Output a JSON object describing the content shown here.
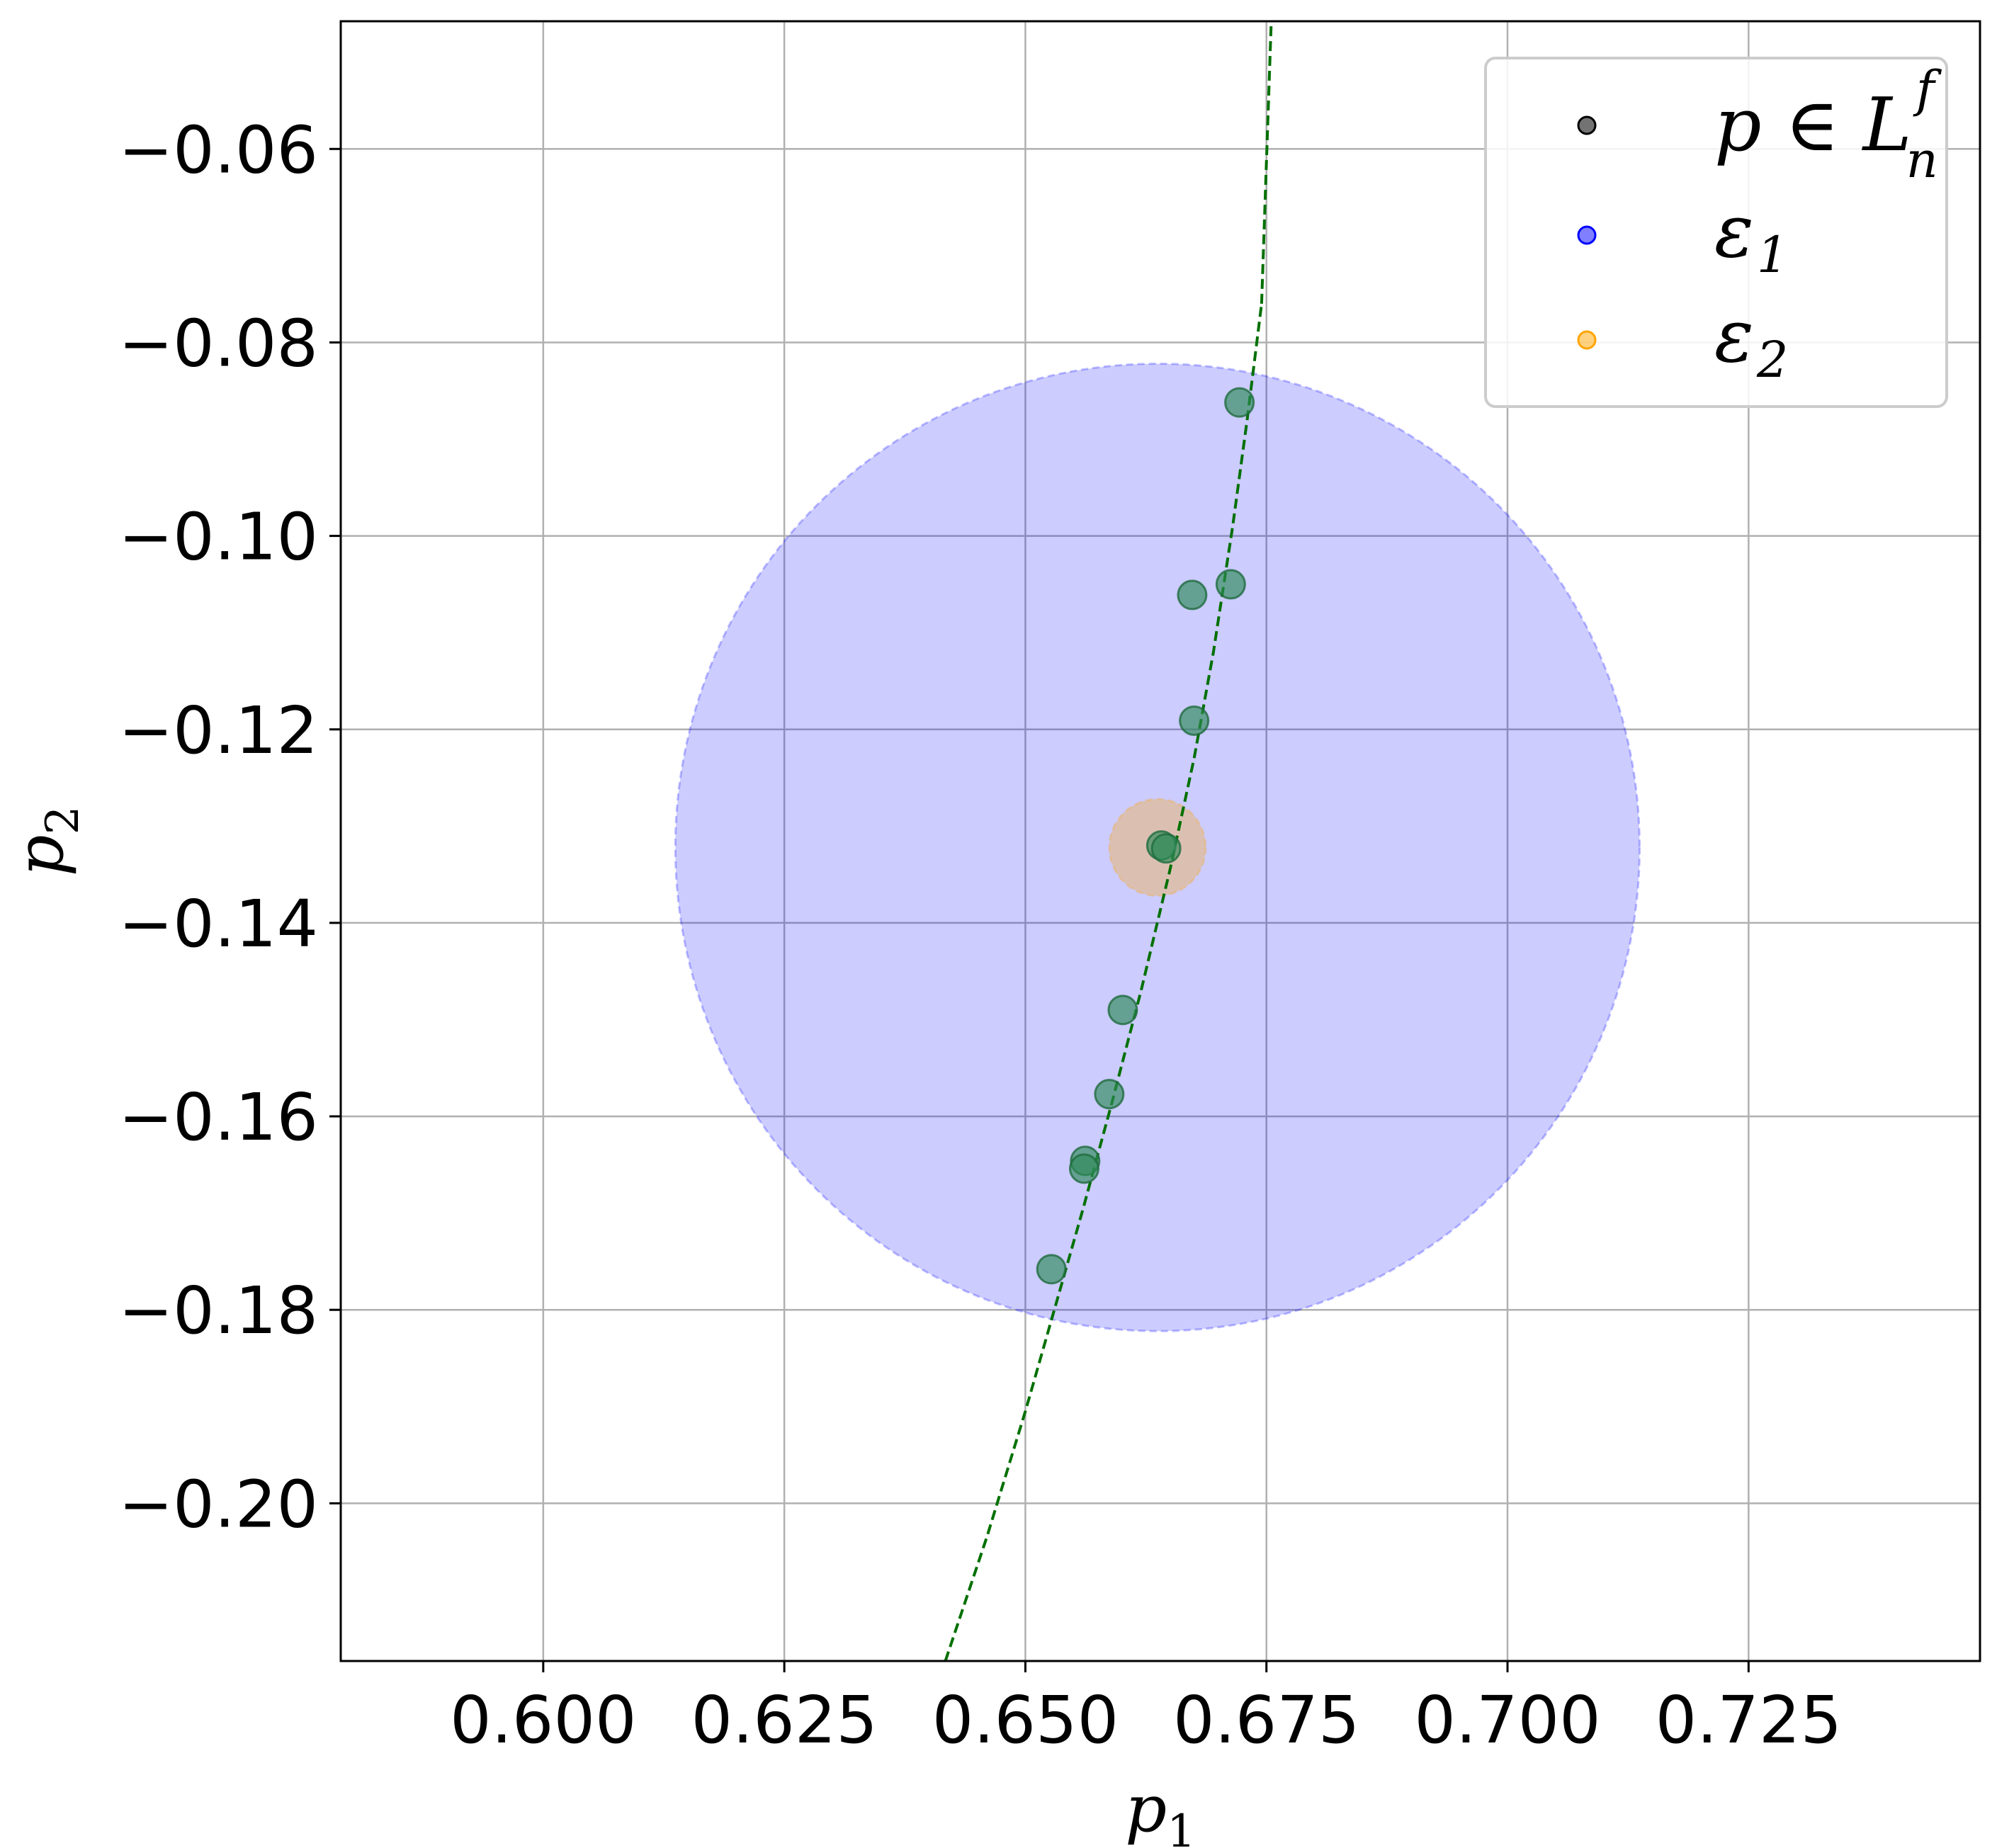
{
  "chart_data": {
    "type": "scatter",
    "title": "",
    "xlabel": "p",
    "xlabel_sub": "1",
    "ylabel": "p",
    "ylabel_sub": "2",
    "xlim": [
      0.579,
      0.749
    ],
    "ylim": [
      -0.2163,
      -0.0468
    ],
    "xticks": [
      0.6,
      0.625,
      0.65,
      0.675,
      0.7,
      0.725
    ],
    "xtick_labels": [
      "0.600",
      "0.625",
      "0.650",
      "0.675",
      "0.700",
      "0.725"
    ],
    "yticks": [
      -0.06,
      -0.08,
      -0.1,
      -0.12,
      -0.14,
      -0.16,
      -0.18,
      -0.2
    ],
    "ytick_labels": [
      "−0.06",
      "−0.08",
      "−0.10",
      "−0.12",
      "−0.14",
      "−0.16",
      "−0.18",
      "−0.20"
    ],
    "grid": true,
    "legend_position": "top-right",
    "legend": [
      {
        "label": "p ∈ L",
        "sup": "f",
        "sub": "n",
        "color": "#000000"
      },
      {
        "label": "ε",
        "sub": "1",
        "color": "#0000ff"
      },
      {
        "label": "ε",
        "sub": "2",
        "color": "#ffa500"
      }
    ],
    "regions": [
      {
        "name": "ε₁",
        "center": [
          0.6637,
          -0.1322
        ],
        "radius": 0.05,
        "color": "#0000ff",
        "opacity": 0.2
      },
      {
        "name": "ε₂",
        "center": [
          0.6637,
          -0.1322
        ],
        "radius": 0.005,
        "color": "#ffa500",
        "opacity": 0.3
      }
    ],
    "points": {
      "color": "#2e8b57",
      "x": [
        0.6722,
        0.6713,
        0.6673,
        0.6675,
        0.6641,
        0.6646,
        0.6601,
        0.6587,
        0.6562,
        0.6561,
        0.6527
      ],
      "y": [
        -0.0862,
        -0.105,
        -0.1061,
        -0.1191,
        -0.132,
        -0.1323,
        -0.149,
        -0.1577,
        -0.1646,
        -0.1654,
        -0.1758
      ]
    },
    "line": {
      "style": "dashed",
      "color": "#007000",
      "x": [
        0.6417,
        0.646,
        0.65,
        0.653,
        0.656,
        0.659,
        0.662,
        0.665,
        0.6675,
        0.6695,
        0.6715,
        0.673,
        0.6745
      ],
      "y": [
        -0.2163,
        -0.2035,
        -0.1905,
        -0.18,
        -0.1695,
        -0.1585,
        -0.147,
        -0.1345,
        -0.123,
        -0.112,
        -0.099,
        -0.088,
        -0.076
      ]
    },
    "line_extension": {
      "x": [
        0.6745,
        0.6755
      ],
      "y": [
        -0.076,
        -0.0468
      ]
    }
  }
}
